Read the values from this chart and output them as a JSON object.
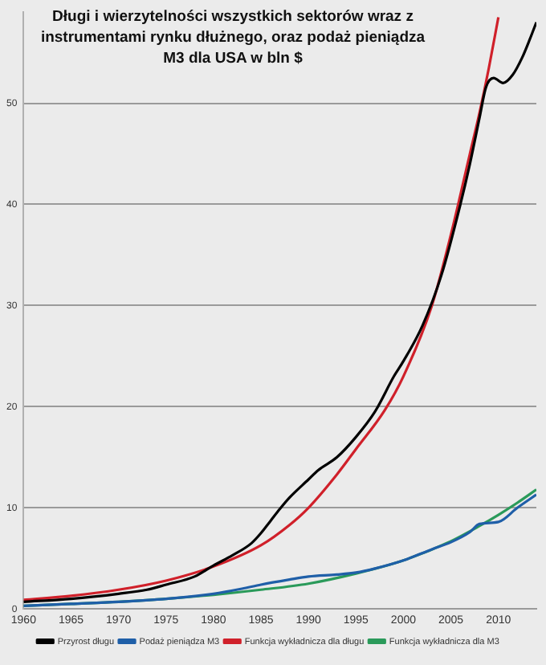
{
  "chart_data": {
    "type": "line",
    "title": "Długi i wierzytelności wszystkich sektorów wraz z instrumentami rynku dłużnego, oraz podaż pieniądza M3 dla USA w bln $",
    "xlim": [
      1960,
      2014
    ],
    "xticks": [
      1960,
      1965,
      1970,
      1975,
      1980,
      1985,
      1990,
      1995,
      2000,
      2005,
      2010
    ],
    "ylim": [
      0,
      59
    ],
    "yticks": [
      0,
      10,
      20,
      30,
      40,
      50
    ],
    "grid": "y",
    "legend": "bottom",
    "marker": "none",
    "line_style": "solid",
    "series": [
      {
        "name": "Przyrost długu",
        "color": "#000000",
        "x": [
          1960,
          1965,
          1970,
          1973,
          1975,
          1978,
          1980,
          1982,
          1984,
          1985,
          1986,
          1987,
          1988,
          1990,
          1991,
          1993,
          1995,
          1997,
          1999,
          2000,
          2002,
          2004,
          2006,
          2007,
          2008,
          2008.7,
          2009.5,
          2010.5,
          2011.5,
          2012.5,
          2013.3,
          2014
        ],
        "values": [
          0.7,
          1.0,
          1.5,
          1.9,
          2.4,
          3.2,
          4.3,
          5.3,
          6.5,
          7.5,
          8.7,
          9.9,
          11,
          12.8,
          13.7,
          15,
          17,
          19.5,
          23,
          24.5,
          28,
          33,
          40,
          44,
          48.5,
          51.6,
          52.5,
          52,
          52.8,
          54.5,
          56.3,
          58
        ]
      },
      {
        "name": "Podaż pieniądza M3",
        "color": "#1f5fa8",
        "x": [
          1960,
          1965,
          1970,
          1975,
          1980,
          1983,
          1985,
          1988,
          1990,
          1993,
          1995,
          1997,
          2000,
          2003,
          2005,
          2007,
          2008,
          2010,
          2012,
          2014
        ],
        "values": [
          0.3,
          0.5,
          0.7,
          1.0,
          1.5,
          2.0,
          2.4,
          2.9,
          3.2,
          3.4,
          3.6,
          4.0,
          4.8,
          5.9,
          6.6,
          7.6,
          8.4,
          8.6,
          10,
          11.3
        ]
      },
      {
        "name": "Funkcja wykładnicza dla długu",
        "color": "#d0202a",
        "x": [
          1960,
          1965,
          1970,
          1975,
          1980,
          1985,
          1988,
          1990,
          1993,
          1995,
          1998,
          2000,
          2003,
          2005,
          2007,
          2008,
          2009,
          2010
        ],
        "values": [
          0.9,
          1.3,
          1.9,
          2.8,
          4.2,
          6.3,
          8.3,
          10,
          13.3,
          15.8,
          19.6,
          23,
          30,
          37,
          45,
          49,
          53.5,
          58.5
        ]
      },
      {
        "name": "Funkcja wykładnicza dla M3",
        "color": "#2a9a5a",
        "x": [
          1960,
          1965,
          1970,
          1975,
          1980,
          1985,
          1990,
          1995,
          2000,
          2005,
          2008,
          2010,
          2012,
          2014
        ],
        "values": [
          0.3,
          0.5,
          0.7,
          1.0,
          1.4,
          1.9,
          2.5,
          3.5,
          4.8,
          6.7,
          8.2,
          9.3,
          10.5,
          11.8
        ]
      }
    ]
  }
}
